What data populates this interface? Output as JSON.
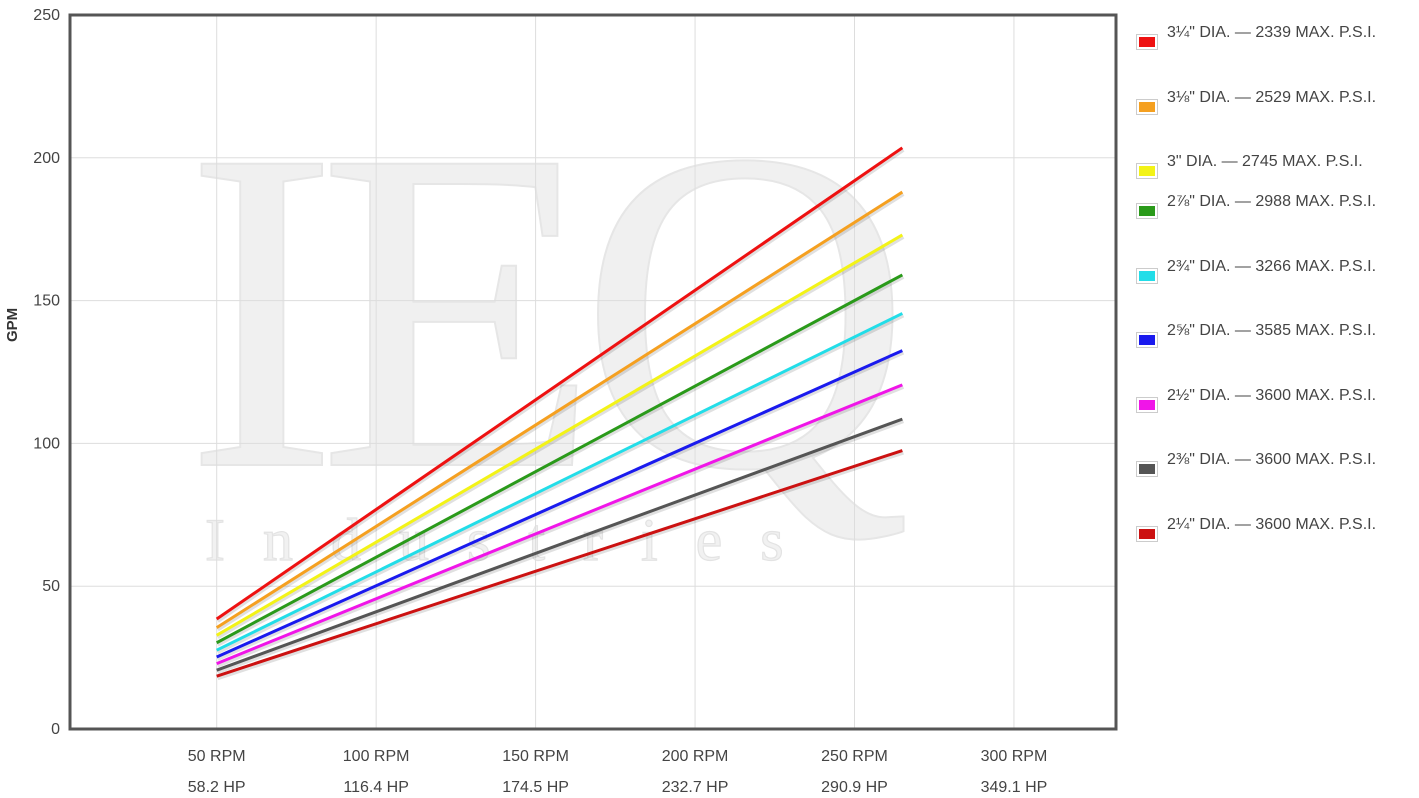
{
  "chart_data": {
    "type": "line",
    "xlabel": "",
    "ylabel": "GPM",
    "xlim": [
      4,
      332
    ],
    "ylim": [
      0,
      250
    ],
    "yticks": [
      "0",
      "50",
      "100",
      "150",
      "200",
      "250"
    ],
    "xticks": [
      {
        "x": 50,
        "rpm": "50 RPM",
        "hp": "58.2 HP"
      },
      {
        "x": 100,
        "rpm": "100 RPM",
        "hp": "116.4 HP"
      },
      {
        "x": 150,
        "rpm": "150 RPM",
        "hp": "174.5 HP"
      },
      {
        "x": 200,
        "rpm": "200 RPM",
        "hp": "232.7 HP"
      },
      {
        "x": 250,
        "rpm": "250 RPM",
        "hp": "290.9 HP"
      },
      {
        "x": 300,
        "rpm": "300 RPM",
        "hp": "349.1 HP"
      }
    ],
    "grid": true,
    "legend": "right",
    "x": [
      50,
      265
    ],
    "series": [
      {
        "name": "3¼\" DIA. — 2339 MAX. P.S.I.",
        "color": "#ee1111",
        "values": [
          38.5,
          203.5
        ]
      },
      {
        "name": "3⅛\" DIA. — 2529 MAX. P.S.I.",
        "color": "#f5a020",
        "values": [
          35.5,
          188
        ]
      },
      {
        "name": "3\" DIA. — 2745 MAX. P.S.I.",
        "color": "#f3f317",
        "values": [
          32.8,
          173
        ]
      },
      {
        "name": "2⅞\" DIA. — 2988 MAX. P.S.I.",
        "color": "#2a9a1a",
        "values": [
          30.2,
          159
        ]
      },
      {
        "name": "2¾\" DIA. — 3266 MAX. P.S.I.",
        "color": "#22dde8",
        "values": [
          27.6,
          145.5
        ]
      },
      {
        "name": "2⅝\" DIA. — 3585 MAX. P.S.I.",
        "color": "#1a1aee",
        "values": [
          25.2,
          132.5
        ]
      },
      {
        "name": "2½\" DIA. — 3600 MAX. P.S.I.",
        "color": "#f015e8",
        "values": [
          22.9,
          120.5
        ]
      },
      {
        "name": "2⅜\" DIA. — 3600 MAX. P.S.I.",
        "color": "#555555",
        "values": [
          20.6,
          108.5
        ]
      },
      {
        "name": "2¼\" DIA. — 3600 MAX. P.S.I.",
        "color": "#cc1111",
        "values": [
          18.5,
          97.5
        ]
      }
    ]
  },
  "watermark": {
    "logo_text": "IEQ",
    "sub_text": "Industries"
  }
}
